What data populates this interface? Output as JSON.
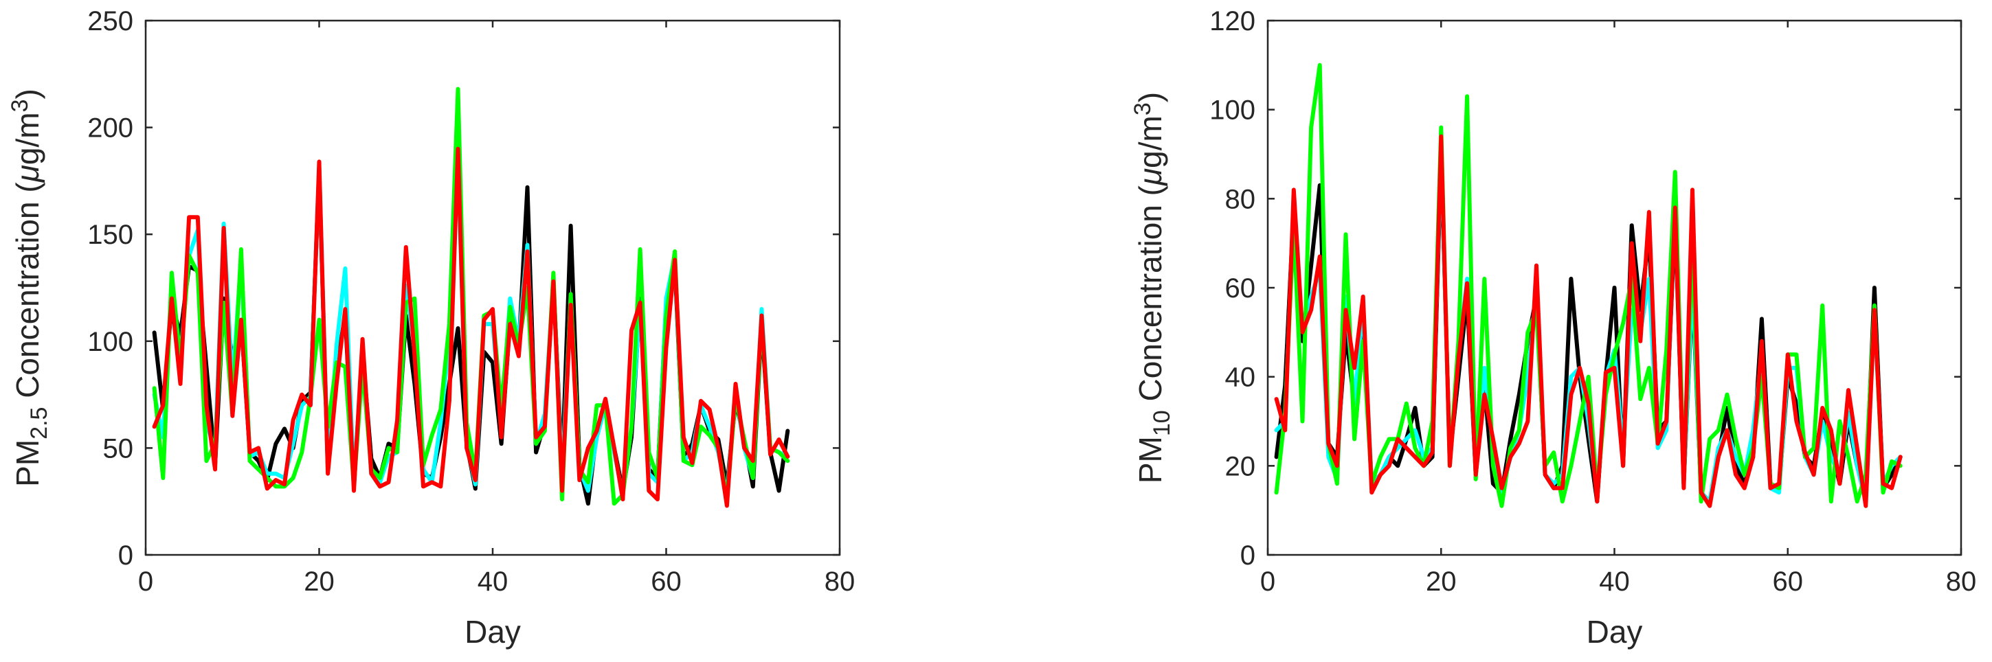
{
  "chart_data": [
    {
      "type": "line",
      "title": "",
      "xlabel": "Day",
      "ylabel": {
        "prefix": "PM",
        "sub": "2.5",
        "mid": " Concentration (",
        "mu": "μ",
        "unit": "g/m",
        "sup": "3",
        "suffix": ")"
      },
      "xlim": [
        0,
        80
      ],
      "ylim": [
        0,
        250
      ],
      "xticks": [
        0,
        20,
        40,
        60,
        80
      ],
      "yticks": [
        0,
        50,
        100,
        150,
        200,
        250
      ],
      "grid": false,
      "legend": "none",
      "x_start": 1,
      "series": [
        {
          "color": "#000000",
          "values": [
            104,
            68,
            118,
            103,
            135,
            133,
            88,
            42,
            120,
            92,
            110,
            48,
            44,
            35,
            52,
            59,
            50,
            72,
            76,
            180,
            40,
            88,
            112,
            32,
            95,
            45,
            36,
            52,
            50,
            112,
            80,
            38,
            36,
            55,
            80,
            106,
            52,
            31,
            95,
            90,
            52,
            110,
            96,
            172,
            48,
            62,
            128,
            40,
            154,
            42,
            24,
            58,
            72,
            50,
            30,
            55,
            120,
            40,
            36,
            118,
            136,
            45,
            52,
            70,
            58,
            54,
            32,
            72,
            54,
            32,
            108,
            48,
            30,
            58
          ]
        },
        {
          "color": "#00ffff",
          "values": [
            75,
            55,
            128,
            92,
            140,
            152,
            62,
            48,
            155,
            80,
            138,
            46,
            48,
            38,
            38,
            36,
            52,
            70,
            74,
            182,
            42,
            98,
            134,
            34,
            96,
            38,
            34,
            46,
            48,
            126,
            98,
            40,
            34,
            62,
            100,
            185,
            52,
            33,
            108,
            108,
            62,
            120,
            100,
            145,
            52,
            66,
            128,
            36,
            120,
            40,
            30,
            55,
            70,
            48,
            28,
            60,
            118,
            38,
            34,
            120,
            140,
            44,
            48,
            70,
            60,
            48,
            28,
            76,
            50,
            36,
            115,
            50,
            48,
            46
          ]
        },
        {
          "color": "#00ff00",
          "values": [
            78,
            36,
            132,
            90,
            140,
            132,
            44,
            52,
            118,
            66,
            143,
            44,
            40,
            36,
            32,
            32,
            36,
            48,
            74,
            110,
            60,
            90,
            88,
            32,
            88,
            40,
            36,
            50,
            48,
            118,
            120,
            42,
            56,
            68,
            108,
            218,
            62,
            38,
            112,
            114,
            68,
            116,
            98,
            125,
            52,
            58,
            132,
            26,
            122,
            40,
            34,
            70,
            70,
            24,
            28,
            60,
            143,
            48,
            36,
            112,
            142,
            44,
            42,
            60,
            56,
            50,
            26,
            74,
            54,
            36,
            110,
            50,
            48,
            44
          ]
        },
        {
          "color": "#ff0000",
          "values": [
            60,
            70,
            120,
            80,
            158,
            158,
            70,
            40,
            153,
            65,
            110,
            48,
            50,
            31,
            35,
            33,
            63,
            75,
            70,
            184,
            38,
            80,
            115,
            30,
            101,
            38,
            32,
            34,
            63,
            144,
            93,
            32,
            34,
            32,
            72,
            190,
            50,
            35,
            110,
            115,
            55,
            108,
            93,
            142,
            55,
            60,
            128,
            30,
            117,
            35,
            50,
            58,
            73,
            50,
            26,
            105,
            118,
            30,
            26,
            97,
            138,
            55,
            43,
            72,
            68,
            50,
            23,
            80,
            50,
            44,
            112,
            47,
            54,
            46
          ]
        }
      ]
    },
    {
      "type": "line",
      "title": "",
      "xlabel": "Day",
      "ylabel": {
        "prefix": "PM",
        "sub": "10",
        "mid": " Concentration (",
        "mu": "μ",
        "unit": "g/m",
        "sup": "3",
        "suffix": ")"
      },
      "xlim": [
        0,
        80
      ],
      "ylim": [
        0,
        120
      ],
      "xticks": [
        0,
        20,
        40,
        60,
        80
      ],
      "yticks": [
        0,
        20,
        40,
        60,
        80,
        100,
        120
      ],
      "grid": false,
      "legend": "none",
      "x_start": 1,
      "series": [
        {
          "color": "#000000",
          "values": [
            22,
            38,
            78,
            48,
            65,
            83,
            25,
            22,
            50,
            34,
            52,
            16,
            18,
            22,
            20,
            26,
            33,
            20,
            22,
            90,
            22,
            40,
            58,
            18,
            38,
            16,
            14,
            26,
            36,
            48,
            58,
            18,
            15,
            20,
            62,
            40,
            26,
            12,
            40,
            60,
            20,
            74,
            55,
            72,
            28,
            30,
            76,
            16,
            60,
            14,
            12,
            22,
            33,
            20,
            16,
            22,
            53,
            16,
            15,
            40,
            34,
            22,
            20,
            32,
            24,
            16,
            30,
            20,
            14,
            60,
            15,
            18,
            22
          ]
        },
        {
          "color": "#00ffff",
          "values": [
            28,
            30,
            80,
            50,
            58,
            64,
            22,
            17,
            58,
            34,
            56,
            16,
            18,
            22,
            24,
            26,
            28,
            22,
            24,
            92,
            20,
            45,
            62,
            18,
            42,
            24,
            14,
            22,
            28,
            40,
            58,
            18,
            16,
            18,
            40,
            42,
            30,
            14,
            40,
            46,
            24,
            55,
            50,
            62,
            24,
            28,
            80,
            16,
            62,
            14,
            12,
            24,
            28,
            22,
            18,
            28,
            45,
            15,
            14,
            42,
            42,
            22,
            18,
            30,
            22,
            18,
            32,
            20,
            12,
            54,
            16,
            20,
            22
          ]
        },
        {
          "color": "#00ff00",
          "values": [
            14,
            32,
            74,
            30,
            96,
            110,
            25,
            16,
            72,
            26,
            48,
            16,
            22,
            26,
            26,
            34,
            24,
            20,
            30,
            96,
            20,
            48,
            103,
            17,
            62,
            20,
            11,
            24,
            28,
            50,
            55,
            20,
            23,
            12,
            20,
            30,
            40,
            14,
            36,
            45,
            52,
            62,
            35,
            42,
            25,
            46,
            86,
            18,
            70,
            12,
            26,
            28,
            36,
            26,
            18,
            24,
            40,
            16,
            15,
            45,
            45,
            22,
            24,
            56,
            12,
            30,
            22,
            12,
            18,
            56,
            14,
            21,
            20
          ]
        },
        {
          "color": "#ff0000",
          "values": [
            35,
            28,
            82,
            50,
            55,
            67,
            25,
            20,
            55,
            42,
            58,
            14,
            18,
            20,
            26,
            24,
            22,
            20,
            23,
            94,
            20,
            44,
            61,
            18,
            36,
            26,
            15,
            22,
            25,
            30,
            65,
            18,
            15,
            15,
            36,
            42,
            34,
            12,
            41,
            42,
            20,
            70,
            48,
            77,
            25,
            30,
            78,
            15,
            82,
            14,
            11,
            22,
            28,
            18,
            15,
            22,
            48,
            15,
            16,
            45,
            30,
            23,
            18,
            33,
            28,
            16,
            37,
            24,
            11,
            55,
            16,
            15,
            22
          ]
        }
      ]
    }
  ]
}
